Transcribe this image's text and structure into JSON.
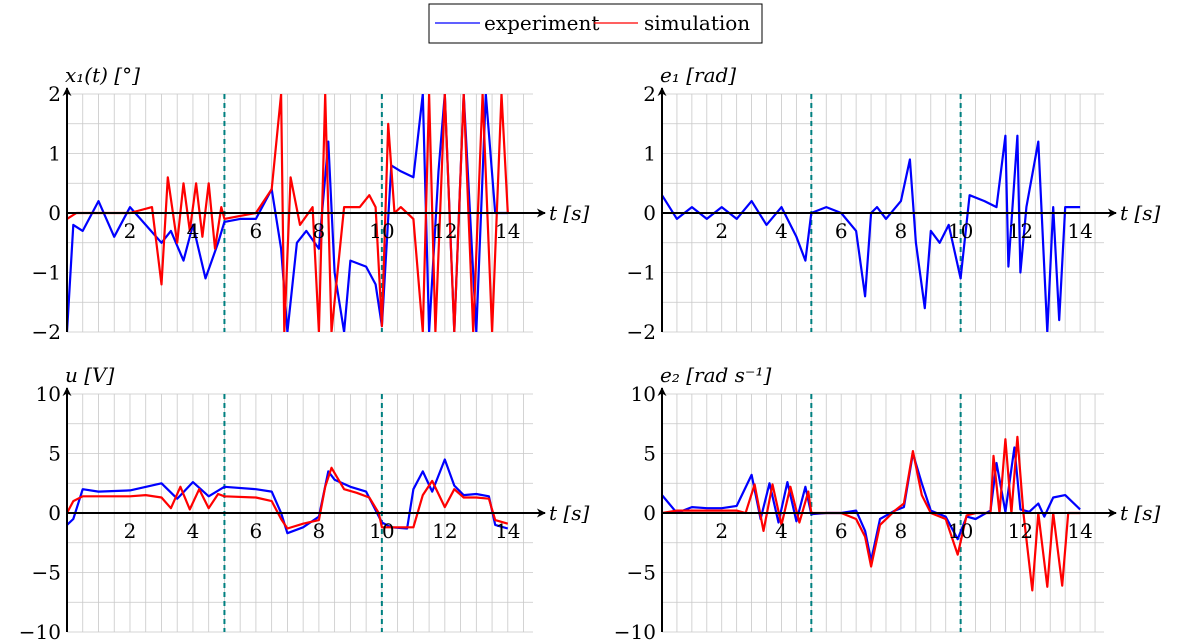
{
  "legend": {
    "entries": [
      {
        "label": "experiment",
        "color": "#0000ff"
      },
      {
        "label": "simulation",
        "color": "#ff0000"
      }
    ]
  },
  "colors": {
    "grid": "#c8c8c8",
    "axis": "#000000",
    "marker": "#008080"
  },
  "vlines": [
    5,
    10
  ],
  "chart_data": [
    {
      "id": "x1",
      "type": "line",
      "ylabel": "x₁(t)  [°]",
      "xlabel": "t [s]",
      "xlim": [
        0,
        14
      ],
      "ylim": [
        -2,
        2
      ],
      "grid": true,
      "xticks": [
        2,
        4,
        6,
        8,
        10,
        12,
        14
      ],
      "yticks": [
        2,
        1,
        0,
        -1,
        -2
      ],
      "series": [
        {
          "name": "experiment",
          "color": "#0000ff",
          "x": [
            0,
            0.2,
            0.5,
            1,
            1.5,
            2,
            2.5,
            3,
            3.3,
            3.7,
            4,
            4.4,
            4.8,
            5,
            5.5,
            6,
            6.5,
            6.8,
            7,
            7.3,
            7.6,
            8,
            8.3,
            8.5,
            8.8,
            9,
            9.5,
            9.8,
            10,
            10.3,
            10.6,
            11,
            11.3,
            11.5,
            11.8,
            12,
            12.3,
            12.6,
            13,
            13.3,
            13.6,
            14
          ],
          "y": [
            -2,
            -0.2,
            -0.3,
            0.2,
            -0.4,
            0.1,
            -0.2,
            -0.5,
            -0.3,
            -0.8,
            -0.2,
            -1.1,
            -0.5,
            -0.15,
            -0.1,
            -0.1,
            0.4,
            -0.6,
            -2,
            -0.5,
            -0.3,
            -0.6,
            1.2,
            -1.0,
            -2,
            -0.8,
            -0.9,
            -1.2,
            -1.9,
            0.8,
            0.7,
            0.6,
            2,
            -2,
            0.7,
            2,
            -2,
            2,
            -2,
            2,
            0.0,
            0.0
          ]
        },
        {
          "name": "simulation",
          "color": "#ff0000",
          "x": [
            0,
            0.3,
            1,
            2,
            2.7,
            3,
            3.2,
            3.5,
            3.7,
            3.9,
            4.1,
            4.3,
            4.5,
            4.7,
            4.9,
            5,
            6,
            6.5,
            6.8,
            6.9,
            7.1,
            7.4,
            7.8,
            8,
            8.2,
            8.4,
            8.8,
            9.3,
            9.6,
            9.8,
            10,
            10.2,
            10.4,
            10.6,
            11,
            11.3,
            11.5,
            11.7,
            12,
            12.3,
            12.6,
            12.9,
            13.2,
            13.5,
            13.8,
            14
          ],
          "y": [
            -0.1,
            0,
            0,
            0,
            0.1,
            -1.2,
            0.6,
            -0.5,
            0.5,
            -0.3,
            0.5,
            -0.4,
            0.5,
            -0.6,
            0.1,
            -0.1,
            0,
            0.4,
            2,
            -2,
            0.6,
            -0.2,
            0.1,
            -2,
            2,
            -2,
            0.1,
            0.1,
            0.3,
            0.1,
            -1.9,
            1.5,
            0,
            0.1,
            -0.1,
            -2,
            2,
            -2,
            2,
            -2,
            2,
            -2,
            2,
            -2,
            2,
            0
          ]
        }
      ]
    },
    {
      "id": "e1",
      "type": "line",
      "ylabel": "e₁  [rad]",
      "xlabel": "t [s]",
      "xlim": [
        0,
        14
      ],
      "ylim": [
        -2,
        2
      ],
      "grid": true,
      "xticks": [
        2,
        4,
        6,
        8,
        10,
        12,
        14
      ],
      "yticks": [
        2,
        1,
        0,
        -1,
        -2
      ],
      "series": [
        {
          "name": "experiment",
          "color": "#0000ff",
          "x": [
            0,
            0.5,
            1,
            1.5,
            2,
            2.5,
            3,
            3.5,
            4,
            4.5,
            4.8,
            5,
            5.5,
            6,
            6.5,
            6.8,
            7,
            7.2,
            7.5,
            8,
            8.3,
            8.5,
            8.8,
            9,
            9.3,
            9.6,
            10,
            10.3,
            10.8,
            11.2,
            11.5,
            11.6,
            11.9,
            12,
            12.2,
            12.6,
            12.9,
            13.1,
            13.3,
            13.5,
            14
          ],
          "y": [
            0.3,
            -0.1,
            0.1,
            -0.1,
            0.1,
            -0.1,
            0.2,
            -0.2,
            0.1,
            -0.4,
            -0.8,
            0,
            0.1,
            0,
            -0.3,
            -1.4,
            0,
            0.1,
            -0.1,
            0.2,
            0.9,
            -0.5,
            -1.6,
            -0.3,
            -0.5,
            -0.2,
            -1.1,
            0.3,
            0.2,
            0.1,
            1.3,
            -0.9,
            1.3,
            -1.0,
            0.1,
            1.2,
            -2,
            0.1,
            -1.8,
            0.1,
            0.1
          ]
        }
      ]
    },
    {
      "id": "u",
      "type": "line",
      "ylabel": "u  [V]",
      "xlabel": "t [s]",
      "xlim": [
        0,
        14
      ],
      "ylim": [
        -10,
        10
      ],
      "grid": true,
      "xticks": [
        2,
        4,
        6,
        8,
        10,
        12,
        14
      ],
      "yticks": [
        10,
        5,
        0,
        -5,
        -10
      ],
      "series": [
        {
          "name": "experiment",
          "color": "#0000ff",
          "x": [
            0,
            0.2,
            0.5,
            1,
            2,
            3,
            3.5,
            4,
            4.5,
            5,
            6,
            6.5,
            6.8,
            7,
            7.5,
            8,
            8.3,
            8.5,
            9,
            9.5,
            10,
            10.3,
            10.8,
            11,
            11.3,
            11.6,
            12,
            12.3,
            12.6,
            13,
            13.4,
            13.6,
            14
          ],
          "y": [
            -1,
            -0.5,
            2,
            1.8,
            1.9,
            2.5,
            1.2,
            2.6,
            1.4,
            2.2,
            2,
            1.8,
            0,
            -1.7,
            -1.2,
            -0.3,
            3.5,
            2.8,
            2.2,
            1.8,
            -0.8,
            -1.2,
            -1.3,
            2,
            3.5,
            1.8,
            4.5,
            2.3,
            1.5,
            1.6,
            1.4,
            -1,
            -1.3
          ]
        },
        {
          "name": "simulation",
          "color": "#ff0000",
          "x": [
            0,
            0.2,
            0.5,
            1,
            2,
            2.5,
            3,
            3.3,
            3.6,
            3.9,
            4.2,
            4.5,
            4.8,
            5,
            6,
            6.5,
            6.8,
            7,
            7.5,
            8,
            8.2,
            8.4,
            8.8,
            9.2,
            9.6,
            9.9,
            10,
            10.5,
            11,
            11.3,
            11.6,
            12,
            12.3,
            12.6,
            13,
            13.4,
            13.6,
            14
          ],
          "y": [
            0,
            1,
            1.4,
            1.4,
            1.4,
            1.5,
            1.3,
            0.4,
            2.2,
            0.3,
            2.0,
            0.4,
            1.6,
            1.4,
            1.3,
            1.0,
            -0.5,
            -1.3,
            -0.9,
            -0.6,
            2.2,
            3.8,
            2.0,
            1.7,
            1.3,
            0,
            -1.2,
            -1.2,
            -1.2,
            1.5,
            2.7,
            0.5,
            2.0,
            1.3,
            1.3,
            1.2,
            -0.6,
            -0.9
          ]
        }
      ]
    },
    {
      "id": "e2",
      "type": "line",
      "ylabel": "e₂  [rad s⁻¹]",
      "xlabel": "t [s]",
      "xlim": [
        0,
        14
      ],
      "ylim": [
        -10,
        10
      ],
      "grid": true,
      "xticks": [
        2,
        4,
        6,
        8,
        10,
        12,
        14
      ],
      "yticks": [
        10,
        5,
        0,
        -5,
        -10
      ],
      "series": [
        {
          "name": "experiment",
          "color": "#0000ff",
          "x": [
            0,
            0.5,
            1,
            1.5,
            2,
            2.5,
            3,
            3.3,
            3.6,
            3.9,
            4.2,
            4.5,
            4.8,
            5,
            5.5,
            6,
            6.5,
            6.8,
            7,
            7.3,
            7.8,
            8.1,
            8.4,
            8.7,
            9,
            9.5,
            9.9,
            10.2,
            10.5,
            11,
            11.2,
            11.5,
            11.8,
            12,
            12.3,
            12.6,
            12.8,
            13.1,
            13.5,
            14
          ],
          "y": [
            1.5,
            0,
            0.5,
            0.4,
            0.4,
            0.6,
            3.2,
            -0.5,
            2.5,
            -0.8,
            2.6,
            -0.7,
            2.2,
            -0.1,
            0,
            0,
            0.2,
            -1.5,
            -4,
            -0.5,
            0.2,
            0.5,
            5,
            2.5,
            0.2,
            -0.3,
            -2.2,
            -0.3,
            -0.5,
            0.2,
            4.2,
            0.1,
            5.5,
            0.3,
            0.1,
            0.8,
            -0.3,
            1.3,
            1.5,
            0.3
          ]
        },
        {
          "name": "simulation",
          "color": "#ff0000",
          "x": [
            0,
            0.5,
            1,
            1.5,
            2,
            2.5,
            2.8,
            3.1,
            3.4,
            3.7,
            4,
            4.3,
            4.6,
            4.9,
            5,
            6,
            6.5,
            6.8,
            7,
            7.3,
            7.8,
            8.1,
            8.4,
            8.7,
            9,
            9.5,
            9.9,
            10.2,
            10.5,
            11,
            11.1,
            11.3,
            11.5,
            11.7,
            11.9,
            12.1,
            12.4,
            12.6,
            12.9,
            13.1,
            13.4,
            13.6,
            14
          ],
          "y": [
            0,
            0.2,
            0.2,
            0.2,
            0.2,
            0.2,
            0,
            2.4,
            -1.5,
            2.4,
            -1.0,
            2.2,
            -0.8,
            1.8,
            0,
            0,
            -0.5,
            -2,
            -4.5,
            -1.0,
            0.2,
            0.8,
            5.2,
            1.5,
            0,
            -0.5,
            -3.5,
            -0.2,
            0,
            0,
            4.8,
            0,
            6.2,
            0,
            6.4,
            0,
            -6.5,
            0,
            -6.2,
            0,
            -6.1,
            0,
            0
          ]
        }
      ]
    }
  ]
}
